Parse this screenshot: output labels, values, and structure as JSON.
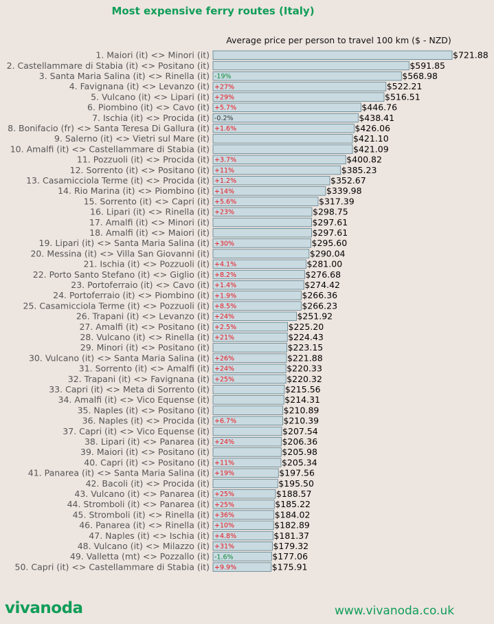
{
  "header": {
    "title": "Most expensive ferry routes (Italy)",
    "subtitle": "Average price per person to travel 100 km ($ - NZD)"
  },
  "footer": {
    "logo": "vivanoda",
    "website": "www.vivanoda.co.uk"
  },
  "colors": {
    "accent": "#0f9d58",
    "bar_fill": "#c9dbe1",
    "bar_stroke": "#5a7d8c",
    "increase": "#e8141b",
    "decrease": "#0f8a3a",
    "neutral": "#333333",
    "background": "#ede5e0"
  },
  "chart_data": {
    "type": "bar",
    "orientation": "horizontal",
    "title": "Most expensive ferry routes (Italy)",
    "subtitle": "Average price per person to travel 100 km ($ - NZD)",
    "grid": false,
    "categories": [
      "1. Maiori (it) <> Minori (it)",
      "2. Castellammare di Stabia (it) <> Positano (it)",
      "3. Santa Maria Salina (it) <> Rinella (it)",
      "4. Favignana (it) <> Levanzo (it)",
      "5. Vulcano (it) <> Lipari (it)",
      "6. Piombino (it) <> Cavo (it)",
      "7. Ischia (it) <> Procida (it)",
      "8. Bonifacio (fr) <> Santa Teresa Di Gallura (it)",
      "9. Salerno (it) <> Vietri sul Mare (it)",
      "10. Amalfi (it) <> Castellammare di Stabia (it)",
      "11. Pozzuoli (it) <> Procida (it)",
      "12. Sorrento (it) <> Positano (it)",
      "13. Casamicciola Terme (it) <> Procida (it)",
      "14. Rio Marina (it) <> Piombino (it)",
      "15. Sorrento (it) <> Capri (it)",
      "16. Lipari (it) <> Rinella (it)",
      "17. Amalfi (it) <> Minori (it)",
      "18. Amalfi (it) <> Maiori (it)",
      "19. Lipari (it) <> Santa Maria Salina (it)",
      "20. Messina (it) <> Villa San Giovanni (it)",
      "21. Ischia (it) <> Pozzuoli (it)",
      "22. Porto Santo Stefano (it) <> Giglio (it)",
      "23. Portoferraio (it) <> Cavo (it)",
      "24. Portoferraio (it) <> Piombino (it)",
      "25. Casamicciola Terme (it) <> Pozzuoli (it)",
      "26. Trapani (it) <> Levanzo (it)",
      "27. Amalfi (it) <> Positano (it)",
      "28. Vulcano (it) <> Rinella (it)",
      "29. Minori (it) <> Positano (it)",
      "30. Vulcano (it) <> Santa Maria Salina (it)",
      "31. Sorrento (it) <> Amalfi (it)",
      "32. Trapani (it) <> Favignana (it)",
      "33. Capri (it) <> Meta di Sorrento (it)",
      "34. Amalfi (it) <> Vico Equense (it)",
      "35. Naples (it) <> Positano (it)",
      "36. Naples (it) <> Procida (it)",
      "37. Capri (it) <> Vico Equense (it)",
      "38. Lipari (it) <> Panarea (it)",
      "39. Maiori (it) <> Positano (it)",
      "40. Capri (it) <> Positano (it)",
      "41. Panarea (it) <> Santa Maria Salina (it)",
      "42. Bacoli (it) <> Procida (it)",
      "43. Vulcano (it) <> Panarea (it)",
      "44. Stromboli (it) <> Panarea (it)",
      "45. Stromboli (it) <> Rinella (it)",
      "46. Panarea (it) <> Rinella (it)",
      "47. Naples (it) <> Ischia (it)",
      "48. Vulcano (it) <> Milazzo (it)",
      "49. Valletta (mt) <> Pozzallo (it)",
      "50. Capri (it) <> Castellammare di Stabia (it)"
    ],
    "values": [
      721.88,
      591.85,
      568.98,
      522.21,
      516.51,
      446.76,
      438.41,
      426.06,
      421.1,
      421.09,
      400.82,
      385.23,
      352.67,
      339.98,
      317.39,
      298.75,
      297.61,
      297.61,
      295.6,
      290.04,
      281.0,
      276.68,
      274.42,
      266.36,
      266.23,
      251.92,
      225.2,
      224.43,
      223.15,
      221.88,
      220.33,
      220.32,
      215.56,
      214.31,
      210.89,
      210.39,
      207.54,
      206.36,
      205.98,
      205.34,
      197.56,
      195.5,
      188.57,
      185.22,
      184.02,
      182.89,
      181.37,
      179.32,
      177.06,
      175.91
    ],
    "value_labels": [
      "$721.88",
      "$591.85",
      "$568.98",
      "$522.21",
      "$516.51",
      "$446.76",
      "$438.41",
      "$426.06",
      "$421.10",
      "$421.09",
      "$400.82",
      "$385.23",
      "$352.67",
      "$339.98",
      "$317.39",
      "$298.75",
      "$297.61",
      "$297.61",
      "$295.60",
      "$290.04",
      "$281.00",
      "$276.68",
      "$274.42",
      "$266.36",
      "$266.23",
      "$251.92",
      "$225.20",
      "$224.43",
      "$223.15",
      "$221.88",
      "$220.33",
      "$220.32",
      "$215.56",
      "$214.31",
      "$210.89",
      "$210.39",
      "$207.54",
      "$206.36",
      "$205.98",
      "$205.34",
      "$197.56",
      "$195.50",
      "$188.57",
      "$185.22",
      "$184.02",
      "$182.89",
      "$181.37",
      "$179.32",
      "$177.06",
      "$175.91"
    ],
    "changes": [
      "",
      "",
      "-19%",
      "+27%",
      "+29%",
      "+5.7%",
      "-0.2%",
      "+1.6%",
      "",
      "",
      "+3.7%",
      "+11%",
      "+1.2%",
      "+14%",
      "+5.6%",
      "+23%",
      "",
      "",
      "+30%",
      "",
      "+4.1%",
      "+8.2%",
      "+1.4%",
      "+1.9%",
      "+8.5%",
      "+24%",
      "+2.5%",
      "+21%",
      "",
      "+26%",
      "+24%",
      "+25%",
      "",
      "",
      "",
      "+6.7%",
      "",
      "+24%",
      "",
      "+11%",
      "+19%",
      "",
      "+25%",
      "+25%",
      "+36%",
      "+10%",
      "+4.8%",
      "+31%",
      "-1.6%",
      "+9.9%"
    ],
    "xlim": [
      0,
      721.88
    ]
  }
}
